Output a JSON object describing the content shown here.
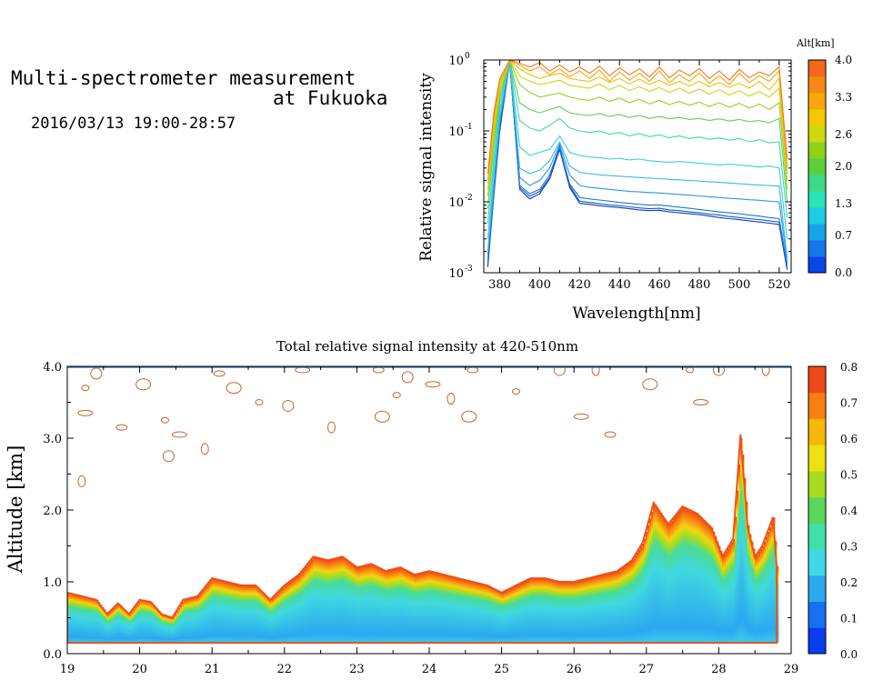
{
  "header": {
    "title_line1": "Multi-spectrometer measurement",
    "title_line2": "at Fukuoka",
    "date_range": "2016/03/13 19:00-28:57"
  },
  "chart_data": [
    {
      "type": "line",
      "title": "",
      "xlabel": "Wavelength[nm]",
      "ylabel": "Relative signal intensity",
      "xlim": [
        372,
        526
      ],
      "ylim": [
        0.001,
        1
      ],
      "yscale": "log",
      "x_ticks": [
        380,
        400,
        420,
        440,
        460,
        480,
        500,
        520
      ],
      "y_tick_labels": [
        {
          "value": 0.001,
          "mantissa": "10",
          "exp": "-3"
        },
        {
          "value": 0.01,
          "mantissa": "10",
          "exp": "-2"
        },
        {
          "value": 0.1,
          "mantissa": "10",
          "exp": "-1"
        },
        {
          "value": 1,
          "mantissa": "10",
          "exp": "0"
        }
      ],
      "x": [
        374,
        377,
        380,
        385,
        390,
        395,
        400,
        405,
        410,
        415,
        420,
        425,
        430,
        435,
        440,
        445,
        450,
        455,
        460,
        465,
        470,
        475,
        480,
        485,
        490,
        495,
        500,
        505,
        510,
        515,
        520,
        524
      ],
      "colorbar": {
        "title": "Alt[km]",
        "min": 0.0,
        "max": 4.0,
        "tick_labels": [
          "0.0",
          "0.7",
          "1.3",
          "2.0",
          "2.6",
          "3.3",
          "4.0"
        ],
        "colors": [
          "#0a46e8",
          "#1478ea",
          "#16a4e8",
          "#1ccde6",
          "#28e5b8",
          "#3ed888",
          "#5ad03a",
          "#8ed21a",
          "#cbd810",
          "#f2c800",
          "#f8a808",
          "#f58a14",
          "#f2691c"
        ]
      },
      "series": [
        {
          "alt_km": 0.0,
          "color": "#0b3fb8",
          "values": [
            0.0012,
            0.012,
            0.1,
            0.95,
            0.015,
            0.011,
            0.013,
            0.021,
            0.055,
            0.016,
            0.0095,
            0.0092,
            0.0088,
            0.0085,
            0.0083,
            0.008,
            0.0077,
            0.0075,
            0.0076,
            0.0072,
            0.007,
            0.0068,
            0.0066,
            0.0063,
            0.006,
            0.0058,
            0.0056,
            0.0054,
            0.0052,
            0.005,
            0.0048,
            0.0011
          ]
        },
        {
          "alt_km": 0.2,
          "color": "#1459c8",
          "values": [
            0.0013,
            0.013,
            0.11,
            0.95,
            0.016,
            0.012,
            0.014,
            0.022,
            0.058,
            0.017,
            0.0102,
            0.0098,
            0.0094,
            0.009,
            0.0088,
            0.0085,
            0.0082,
            0.008,
            0.0081,
            0.0077,
            0.0075,
            0.0072,
            0.007,
            0.0067,
            0.0065,
            0.0062,
            0.006,
            0.0058,
            0.0056,
            0.0054,
            0.0052,
            0.0012
          ]
        },
        {
          "alt_km": 0.4,
          "color": "#1c78d8",
          "values": [
            0.0015,
            0.014,
            0.12,
            0.96,
            0.017,
            0.013,
            0.015,
            0.024,
            0.06,
            0.018,
            0.0115,
            0.011,
            0.0106,
            0.0102,
            0.0098,
            0.0095,
            0.0092,
            0.009,
            0.009,
            0.0087,
            0.0084,
            0.0081,
            0.0078,
            0.0075,
            0.0072,
            0.007,
            0.0068,
            0.0065,
            0.0063,
            0.006,
            0.0058,
            0.0013
          ]
        },
        {
          "alt_km": 0.6,
          "color": "#2a98e0",
          "values": [
            0.0018,
            0.016,
            0.14,
            0.96,
            0.022,
            0.017,
            0.02,
            0.03,
            0.065,
            0.024,
            0.017,
            0.016,
            0.0155,
            0.015,
            0.0145,
            0.014,
            0.0138,
            0.0135,
            0.0133,
            0.013,
            0.0127,
            0.0124,
            0.0121,
            0.0118,
            0.0115,
            0.0112,
            0.011,
            0.0107,
            0.0105,
            0.0102,
            0.01,
            0.0014
          ]
        },
        {
          "alt_km": 0.9,
          "color": "#3ab8e4",
          "values": [
            0.002,
            0.02,
            0.16,
            0.97,
            0.03,
            0.025,
            0.028,
            0.038,
            0.07,
            0.032,
            0.026,
            0.025,
            0.024,
            0.0235,
            0.023,
            0.0225,
            0.022,
            0.0216,
            0.0212,
            0.0208,
            0.0204,
            0.02,
            0.0196,
            0.0192,
            0.0188,
            0.0184,
            0.018,
            0.0176,
            0.0172,
            0.017,
            0.0166,
            0.0016
          ]
        },
        {
          "alt_km": 1.2,
          "color": "#38d0d8",
          "values": [
            0.003,
            0.028,
            0.2,
            0.97,
            0.06,
            0.045,
            0.05,
            0.055,
            0.085,
            0.05,
            0.045,
            0.043,
            0.042,
            0.04,
            0.041,
            0.039,
            0.04,
            0.038,
            0.037,
            0.036,
            0.037,
            0.036,
            0.035,
            0.034,
            0.033,
            0.034,
            0.033,
            0.032,
            0.031,
            0.032,
            0.03,
            0.003
          ]
        },
        {
          "alt_km": 1.6,
          "color": "#40d8a0",
          "values": [
            0.005,
            0.04,
            0.25,
            0.98,
            0.14,
            0.11,
            0.1,
            0.12,
            0.15,
            0.11,
            0.1,
            0.095,
            0.1,
            0.09,
            0.095,
            0.085,
            0.092,
            0.083,
            0.088,
            0.08,
            0.085,
            0.078,
            0.082,
            0.076,
            0.08,
            0.074,
            0.078,
            0.07,
            0.075,
            0.068,
            0.07,
            0.006
          ]
        },
        {
          "alt_km": 1.9,
          "color": "#5cd056",
          "values": [
            0.008,
            0.06,
            0.3,
            0.98,
            0.25,
            0.2,
            0.18,
            0.2,
            0.22,
            0.18,
            0.17,
            0.165,
            0.175,
            0.16,
            0.17,
            0.155,
            0.165,
            0.15,
            0.16,
            0.148,
            0.155,
            0.145,
            0.15,
            0.14,
            0.148,
            0.138,
            0.145,
            0.135,
            0.14,
            0.13,
            0.15,
            0.01
          ]
        },
        {
          "alt_km": 2.3,
          "color": "#90d428",
          "values": [
            0.012,
            0.08,
            0.35,
            0.98,
            0.45,
            0.35,
            0.3,
            0.32,
            0.34,
            0.3,
            0.28,
            0.27,
            0.3,
            0.26,
            0.29,
            0.25,
            0.28,
            0.24,
            0.27,
            0.235,
            0.26,
            0.23,
            0.255,
            0.22,
            0.25,
            0.215,
            0.245,
            0.21,
            0.24,
            0.2,
            0.25,
            0.015
          ]
        },
        {
          "alt_km": 2.8,
          "color": "#d0d418",
          "values": [
            0.015,
            0.1,
            0.4,
            0.99,
            0.6,
            0.5,
            0.45,
            0.48,
            0.52,
            0.44,
            0.42,
            0.4,
            0.46,
            0.38,
            0.44,
            0.37,
            0.42,
            0.36,
            0.41,
            0.35,
            0.4,
            0.34,
            0.39,
            0.33,
            0.38,
            0.32,
            0.37,
            0.31,
            0.36,
            0.3,
            0.4,
            0.02
          ]
        },
        {
          "alt_km": 3.2,
          "color": "#f0c008",
          "values": [
            0.018,
            0.12,
            0.45,
            0.99,
            0.75,
            0.62,
            0.55,
            0.6,
            0.65,
            0.55,
            0.52,
            0.5,
            0.58,
            0.48,
            0.55,
            0.46,
            0.54,
            0.45,
            0.52,
            0.44,
            0.5,
            0.43,
            0.5,
            0.42,
            0.48,
            0.41,
            0.47,
            0.4,
            0.5,
            0.38,
            0.55,
            0.025
          ]
        },
        {
          "alt_km": 3.6,
          "color": "#f4a410",
          "values": [
            0.02,
            0.15,
            0.5,
            0.99,
            0.85,
            0.7,
            0.8,
            0.62,
            0.75,
            0.58,
            0.7,
            0.55,
            0.72,
            0.5,
            0.68,
            0.52,
            0.65,
            0.5,
            0.7,
            0.48,
            0.62,
            0.5,
            0.66,
            0.47,
            0.6,
            0.45,
            0.65,
            0.48,
            0.6,
            0.5,
            0.7,
            0.03
          ]
        },
        {
          "alt_km": 4.0,
          "color": "#f07c1c",
          "values": [
            0.025,
            0.18,
            0.55,
            1.0,
            0.9,
            0.8,
            0.92,
            0.7,
            0.85,
            0.68,
            0.8,
            0.65,
            0.82,
            0.6,
            0.78,
            0.62,
            0.75,
            0.58,
            0.8,
            0.56,
            0.72,
            0.6,
            0.76,
            0.55,
            0.7,
            0.52,
            0.74,
            0.56,
            0.68,
            0.6,
            0.8,
            0.04
          ]
        }
      ]
    },
    {
      "type": "heatmap",
      "title": "Total relative signal intensity at 420-510nm",
      "xlabel": "",
      "ylabel": "Altitude [km]",
      "xlim": [
        19,
        29
      ],
      "ylim": [
        0,
        4
      ],
      "x_tick_labels": [
        "19",
        "20",
        "21",
        "22",
        "23",
        "24",
        "25",
        "26",
        "27",
        "28",
        "29"
      ],
      "y_tick_labels": [
        "0.0",
        "1.0",
        "2.0",
        "3.0",
        "4.0"
      ],
      "colorbar": {
        "min": 0.0,
        "max": 0.8,
        "tick_labels": [
          "0.0",
          "0.1",
          "0.2",
          "0.3",
          "0.4",
          "0.5",
          "0.6",
          "0.7",
          "0.8"
        ],
        "colors": [
          "#0a3cf0",
          "#1670f0",
          "#2aa8f0",
          "#3ed8e8",
          "#40e0a8",
          "#58d858",
          "#a8dc20",
          "#f0e010",
          "#f8b808",
          "#f88010",
          "#f04818"
        ]
      },
      "data_bottom_km": 0.15,
      "boundary_time": [
        19.0,
        19.2,
        19.4,
        19.55,
        19.7,
        19.85,
        20.0,
        20.15,
        20.3,
        20.45,
        20.6,
        20.8,
        21.0,
        21.2,
        21.4,
        21.6,
        21.8,
        22.0,
        22.2,
        22.4,
        22.6,
        22.8,
        23.0,
        23.2,
        23.4,
        23.6,
        23.8,
        24.0,
        24.2,
        24.4,
        24.6,
        24.8,
        25.0,
        25.2,
        25.4,
        25.6,
        25.8,
        26.0,
        26.2,
        26.4,
        26.6,
        26.8,
        26.95,
        27.1,
        27.3,
        27.5,
        27.7,
        27.9,
        28.05,
        28.2,
        28.3,
        28.4,
        28.5,
        28.6,
        28.75,
        28.8
      ],
      "boundary_alt": [
        0.85,
        0.8,
        0.75,
        0.55,
        0.7,
        0.55,
        0.75,
        0.72,
        0.55,
        0.5,
        0.75,
        0.8,
        1.05,
        1.0,
        0.95,
        0.95,
        0.75,
        0.95,
        1.1,
        1.35,
        1.3,
        1.35,
        1.2,
        1.25,
        1.15,
        1.2,
        1.1,
        1.15,
        1.1,
        1.05,
        1.0,
        0.95,
        0.85,
        0.95,
        1.05,
        1.05,
        1.0,
        1.0,
        1.05,
        1.1,
        1.15,
        1.3,
        1.55,
        2.1,
        1.8,
        2.05,
        1.95,
        1.75,
        1.35,
        1.6,
        3.05,
        1.75,
        1.35,
        1.5,
        1.9,
        1.2
      ]
    }
  ]
}
